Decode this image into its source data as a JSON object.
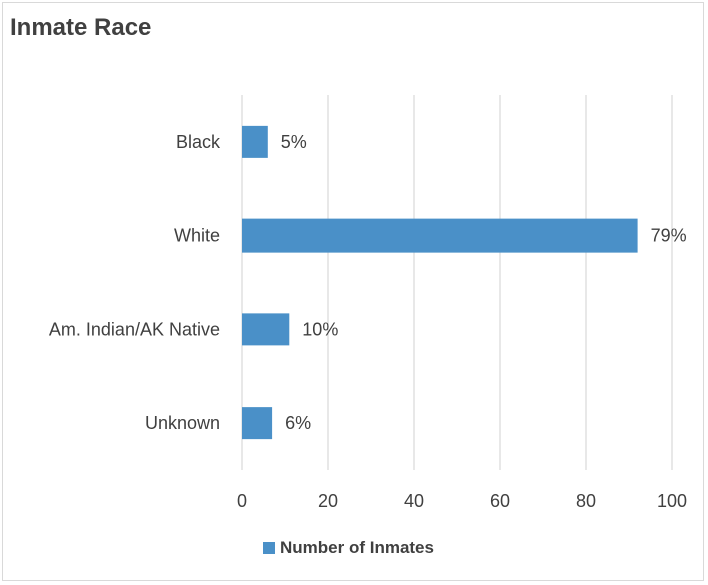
{
  "chart_data": {
    "type": "bar",
    "orientation": "horizontal",
    "title": "Inmate Race",
    "categories": [
      "Black",
      "White",
      "Am. Indian/AK Native",
      "Unknown"
    ],
    "series": [
      {
        "name": "Number of Inmates",
        "values": [
          6,
          92,
          11,
          7
        ],
        "data_labels": [
          "5%",
          "79%",
          "10%",
          "6%"
        ]
      }
    ],
    "xlim": [
      0,
      100
    ],
    "x_ticks": [
      "0",
      "20",
      "40",
      "60",
      "80",
      "100"
    ],
    "grid": "vertical",
    "legend_position": "bottom",
    "bar_color": "#4a90c8"
  }
}
